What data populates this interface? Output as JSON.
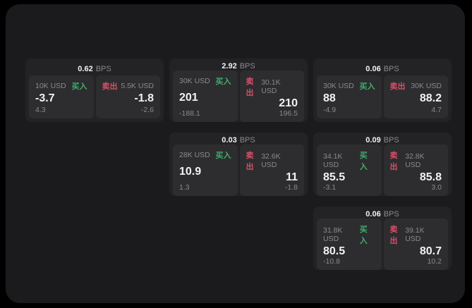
{
  "theme": {
    "background": "#000000",
    "surface": "#1b1b1d",
    "card_background": "#232326",
    "panel_background": "#2d2d30",
    "text_primary": "#f2f2f2",
    "text_muted": "#8a8a8e",
    "buy_color": "#3fae6e",
    "sell_color": "#d94f68"
  },
  "labels": {
    "bps": "BPS",
    "buy": "买入",
    "sell": "卖出"
  },
  "cards": [
    {
      "col": 1,
      "row": 1,
      "spread": "0.62",
      "buy": {
        "size": "10K USD",
        "price": "-3.7",
        "delta": "4.3"
      },
      "sell": {
        "size": "5.5K USD",
        "price": "-1.8",
        "delta": "-2.6"
      }
    },
    {
      "col": 2,
      "row": 1,
      "spread": "2.92",
      "buy": {
        "size": "30K USD",
        "price": "201",
        "delta": "-188.1"
      },
      "sell": {
        "size": "30.1K USD",
        "price": "210",
        "delta": "196.5"
      }
    },
    {
      "col": 3,
      "row": 1,
      "spread": "0.06",
      "buy": {
        "size": "30K USD",
        "price": "88",
        "delta": "-4.9"
      },
      "sell": {
        "size": "30K USD",
        "price": "88.2",
        "delta": "4.7"
      }
    },
    {
      "col": 2,
      "row": 2,
      "spread": "0.03",
      "buy": {
        "size": "28K USD",
        "price": "10.9",
        "delta": "1.3"
      },
      "sell": {
        "size": "32.6K USD",
        "price": "11",
        "delta": "-1.8"
      }
    },
    {
      "col": 3,
      "row": 2,
      "spread": "0.09",
      "buy": {
        "size": "34.1K USD",
        "price": "85.5",
        "delta": "-3.1"
      },
      "sell": {
        "size": "32.8K USD",
        "price": "85.8",
        "delta": "3.0"
      }
    },
    {
      "col": 3,
      "row": 3,
      "spread": "0.06",
      "buy": {
        "size": "31.8K USD",
        "price": "80.5",
        "delta": "-10.8"
      },
      "sell": {
        "size": "39.1K USD",
        "price": "80.7",
        "delta": "10.2"
      }
    }
  ]
}
